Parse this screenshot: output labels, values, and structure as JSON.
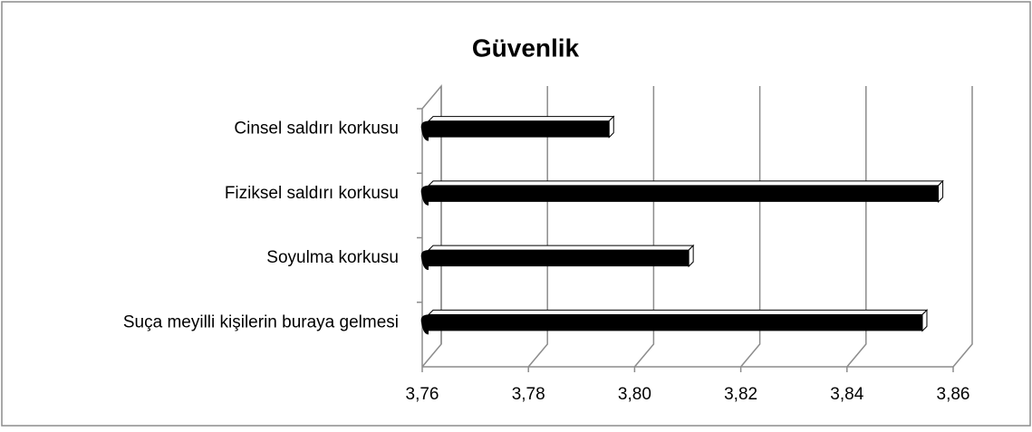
{
  "chart_data": {
    "type": "bar",
    "orientation": "horizontal",
    "title": "Güvenlik",
    "categories": [
      "Cinsel saldırı korkusu",
      "Fiziksel saldırı korkusu",
      "Soyulma korkusu",
      "Suça meyilli kişilerin buraya gelmesi"
    ],
    "values": [
      3.794,
      3.856,
      3.809,
      3.853
    ],
    "color": "#000000",
    "xlim": [
      3.76,
      3.86
    ],
    "xticks": [
      {
        "value": 3.76,
        "label": "3,76"
      },
      {
        "value": 3.78,
        "label": "3,78"
      },
      {
        "value": 3.8,
        "label": "3,80"
      },
      {
        "value": 3.82,
        "label": "3,82"
      },
      {
        "value": 3.84,
        "label": "3,84"
      },
      {
        "value": 3.86,
        "label": "3,86"
      }
    ],
    "grid": true
  }
}
